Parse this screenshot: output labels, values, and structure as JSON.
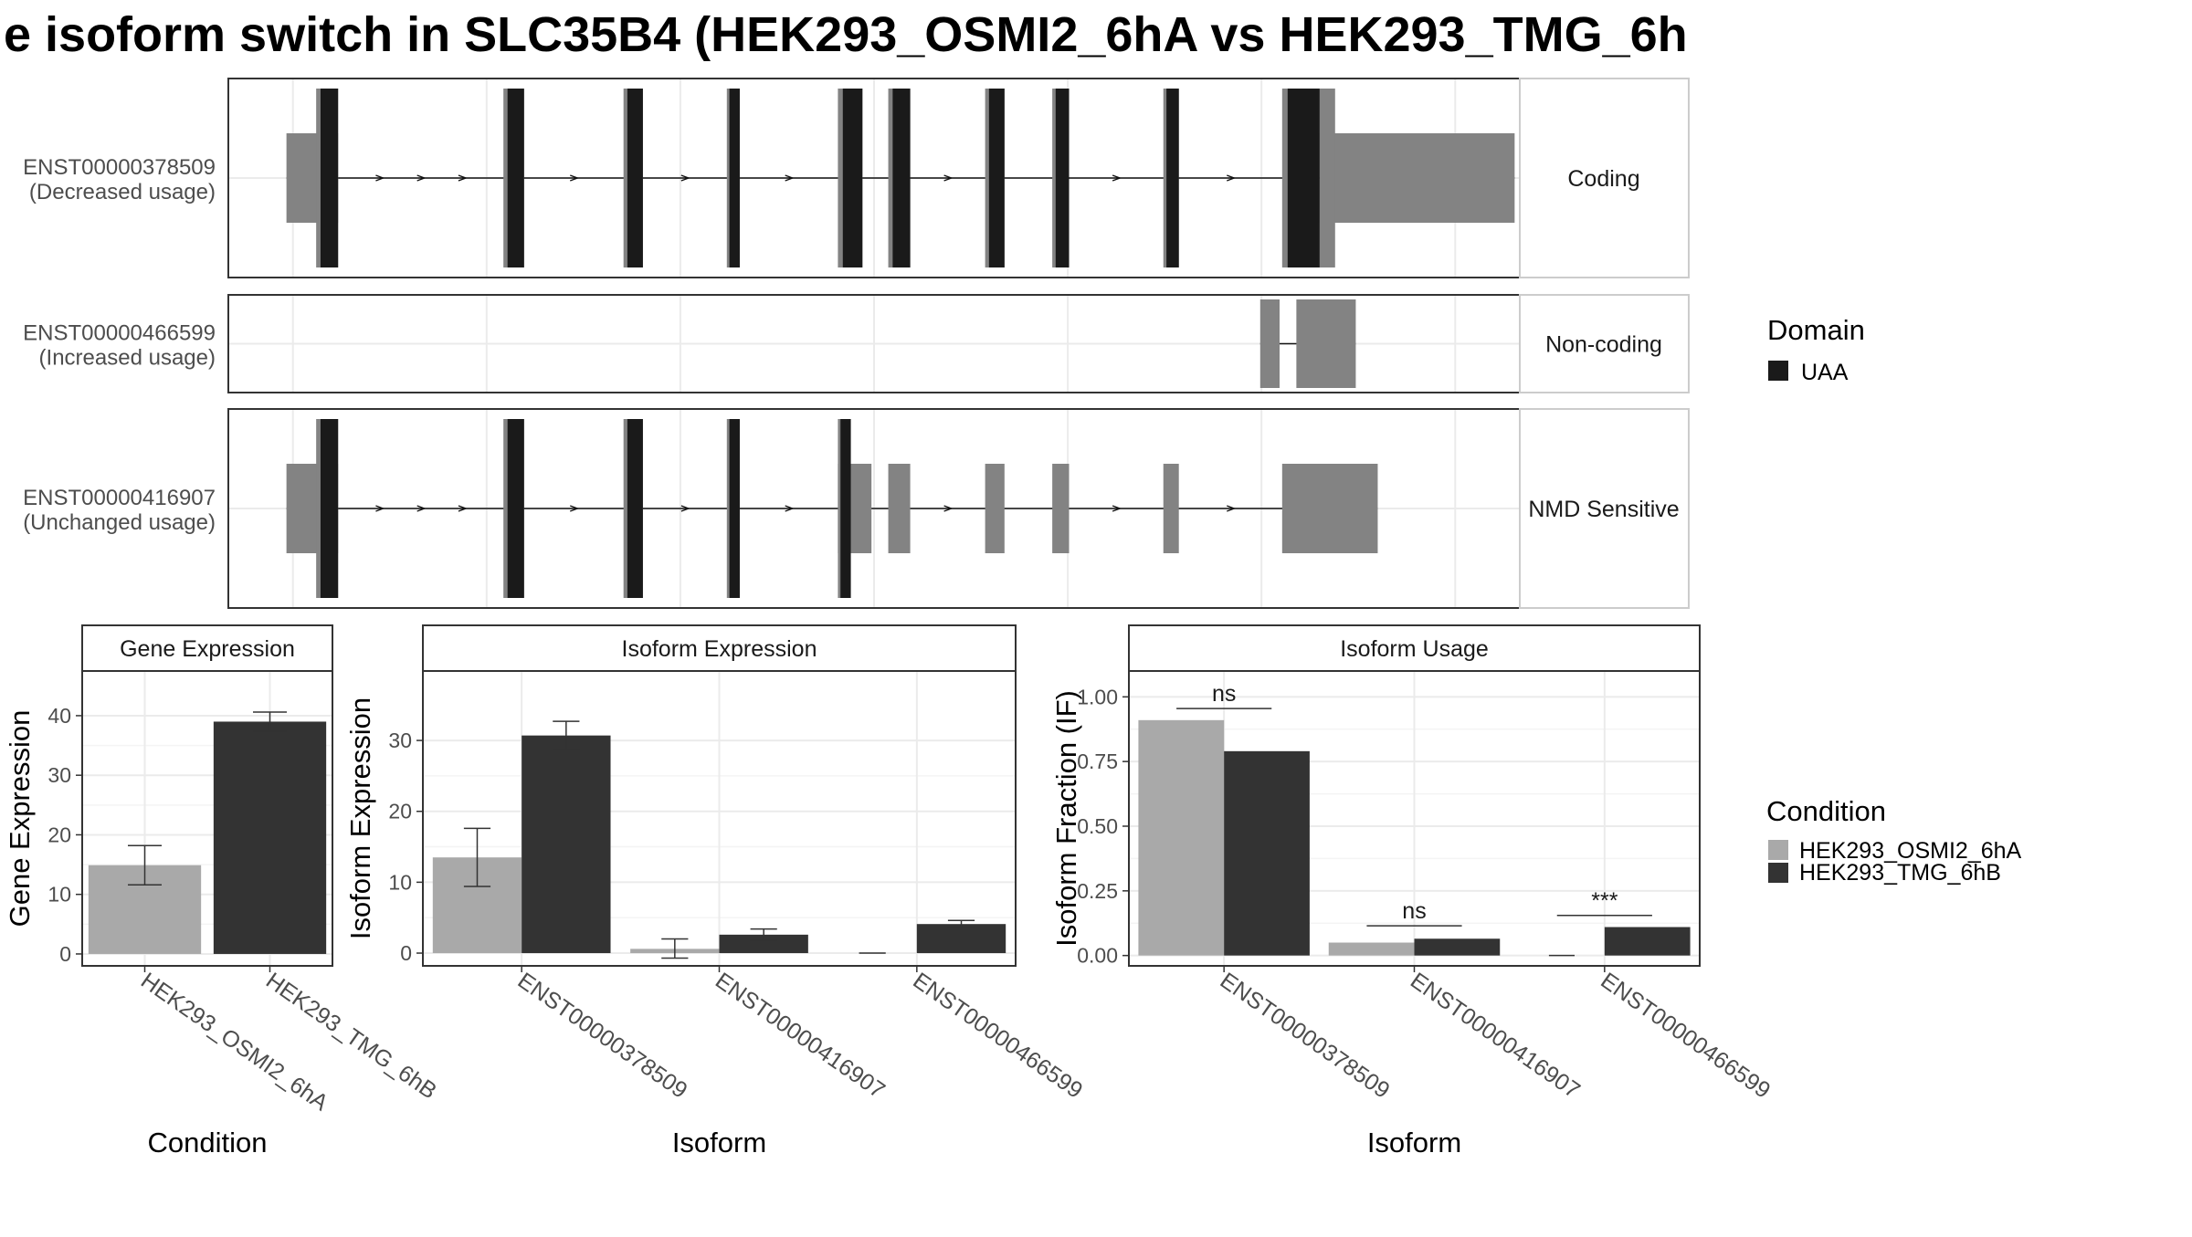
{
  "title": "e isoform switch in SLC35B4 (HEK293_OSMI2_6hA vs HEK293_TMG_6h",
  "colors": {
    "osmi": "#a9a9a9",
    "tmg": "#333333",
    "domain": "#1a1a1a",
    "transcript": "#838383",
    "panel_border": "#333333",
    "grid": "#ebebeb"
  },
  "chart_data": [
    {
      "type": "table",
      "name": "transcript-structure",
      "genomic_axis": {
        "range": [
          0,
          100
        ],
        "gridlines": [
          5,
          20,
          35,
          50,
          65,
          80,
          95
        ]
      },
      "transcripts": [
        {
          "id": "ENST00000378509",
          "usage": "(Decreased usage)",
          "category": "Coding",
          "strand": "+",
          "utr_blocks": [
            [
              4.5,
              8.5
            ],
            [
              84.5,
              99.6
            ]
          ],
          "cds_blocks": [
            [
              6.8,
              8.5
            ],
            [
              21.3,
              22.9
            ],
            [
              30.6,
              32.1
            ],
            [
              38.6,
              39.6
            ],
            [
              47.2,
              49.1
            ],
            [
              51.1,
              52.8
            ],
            [
              58.6,
              60.1
            ],
            [
              63.8,
              65.1
            ],
            [
              72.4,
              73.6
            ],
            [
              81.6,
              84.5
            ]
          ],
          "cds_extra": [
            [
              84.5,
              85.7
            ]
          ]
        },
        {
          "id": "ENST00000466599",
          "usage": "(Increased usage)",
          "category": "Non-coding",
          "strand": "+",
          "utr_blocks": [
            [
              79.9,
              81.4
            ],
            [
              82.7,
              87.3
            ]
          ],
          "cds_blocks": [],
          "cds_extra": []
        },
        {
          "id": "ENST00000416907",
          "usage": "(Unchanged usage)",
          "category": "NMD Sensitive",
          "strand": "+",
          "utr_blocks": [
            [
              4.5,
              8.5
            ],
            [
              47.2,
              49.8
            ],
            [
              51.1,
              52.8
            ],
            [
              58.6,
              60.1
            ],
            [
              63.8,
              65.1
            ],
            [
              72.4,
              73.6
            ],
            [
              81.6,
              89.0
            ]
          ],
          "cds_blocks": [
            [
              6.8,
              8.5
            ],
            [
              21.3,
              22.9
            ],
            [
              30.6,
              32.1
            ],
            [
              38.6,
              39.6
            ],
            [
              47.2,
              48.2
            ]
          ],
          "cds_extra": []
        }
      ],
      "legend": {
        "title": "Domain",
        "entries": [
          "UAA"
        ]
      }
    },
    {
      "type": "bar",
      "name": "gene-expression",
      "title": "Gene Expression",
      "xlabel": "Condition",
      "ylabel": "Gene Expression",
      "categories": [
        "HEK293_OSMI2_6hA",
        "HEK293_TMG_6hB"
      ],
      "values": [
        14.9,
        39.0
      ],
      "errors": [
        [
          11.6,
          18.2
        ],
        [
          37.4,
          40.6
        ]
      ],
      "yticks": [
        0,
        10,
        20,
        30,
        40
      ],
      "ylim": [
        -2,
        47.5
      ]
    },
    {
      "type": "bar",
      "name": "isoform-expression",
      "title": "Isoform Expression",
      "xlabel": "Isoform",
      "ylabel": "Isoform Expression",
      "categories": [
        "ENST00000378509",
        "ENST00000416907",
        "ENST00000466599"
      ],
      "series": [
        {
          "name": "HEK293_OSMI2_6hA",
          "values": [
            13.5,
            0.6,
            0.0
          ],
          "errors": [
            [
              9.4,
              17.6
            ],
            [
              -0.7,
              2.0
            ],
            [
              0.0,
              0.0
            ]
          ]
        },
        {
          "name": "HEK293_TMG_6hB",
          "values": [
            30.7,
            2.6,
            4.1
          ],
          "errors": [
            [
              28.7,
              32.7
            ],
            [
              1.8,
              3.4
            ],
            [
              3.6,
              4.6
            ]
          ]
        }
      ],
      "yticks": [
        0,
        10,
        20,
        30
      ],
      "ylim": [
        -1.8,
        39.8
      ]
    },
    {
      "type": "bar",
      "name": "isoform-usage",
      "title": "Isoform Usage",
      "xlabel": "Isoform",
      "ylabel": "Isoform Fraction (IF)",
      "categories": [
        "ENST00000378509",
        "ENST00000416907",
        "ENST00000466599"
      ],
      "series": [
        {
          "name": "HEK293_OSMI2_6hA",
          "values": [
            0.91,
            0.05,
            0.0
          ]
        },
        {
          "name": "HEK293_TMG_6hB",
          "values": [
            0.79,
            0.065,
            0.11
          ]
        }
      ],
      "significance": [
        {
          "label": "ns",
          "y": 0.955
        },
        {
          "label": "ns",
          "y": 0.115
        },
        {
          "label": "***",
          "y": 0.155
        }
      ],
      "yticks": [
        "0.00",
        "0.25",
        "0.50",
        "0.75",
        "1.00"
      ],
      "ylim": [
        -0.04,
        1.1
      ],
      "legend": {
        "title": "Condition",
        "entries": [
          "HEK293_OSMI2_6hA",
          "HEK293_TMG_6hB"
        ]
      }
    }
  ]
}
